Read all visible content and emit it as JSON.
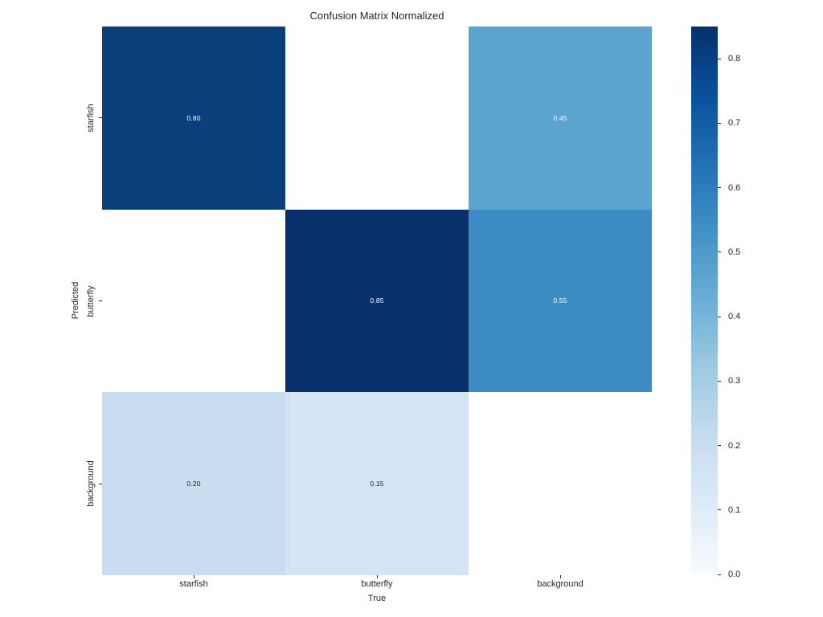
{
  "figure": {
    "background_color": "#ffffff",
    "text_color": "#262626"
  },
  "chart_data": {
    "type": "heatmap",
    "title": "Confusion Matrix Normalized",
    "xlabel": "True",
    "ylabel": "Predicted",
    "x_tick_labels": [
      "starfish",
      "butterfly",
      "background"
    ],
    "y_tick_labels": [
      "starfish",
      "butterfly",
      "background"
    ],
    "matrix": [
      [
        0.8,
        null,
        0.45
      ],
      [
        null,
        0.85,
        0.55
      ],
      [
        0.2,
        0.15,
        null
      ]
    ],
    "cells": [
      [
        {
          "label": "0.80",
          "bg": "#09407c",
          "fg": "#ffffff"
        },
        {
          "label": "",
          "bg": "#ffffff",
          "fg": "#1a1a1a"
        },
        {
          "label": "0.45",
          "bg": "#5ba4d0",
          "fg": "#ffffff"
        }
      ],
      [
        {
          "label": "",
          "bg": "#ffffff",
          "fg": "#1a1a1a"
        },
        {
          "label": "0.85",
          "bg": "#08306b",
          "fg": "#ffffff"
        },
        {
          "label": "0.55",
          "bg": "#3c8cc3",
          "fg": "#ffffff"
        }
      ],
      [
        {
          "label": "0.20",
          "bg": "#c9ddf0",
          "fg": "#1a1a1a"
        },
        {
          "label": "0.15",
          "bg": "#d4e4f4",
          "fg": "#1a1a1a"
        },
        {
          "label": "",
          "bg": "#ffffff",
          "fg": "#1a1a1a"
        }
      ]
    ],
    "colormap": "Blues",
    "grid": false,
    "legend_position": "right-colorbar",
    "colorbar": {
      "vmin": 0.0,
      "vmax": 0.85,
      "ticks": [
        {
          "label": "0.0",
          "value": 0.0
        },
        {
          "label": "0.1",
          "value": 0.1
        },
        {
          "label": "0.2",
          "value": 0.2
        },
        {
          "label": "0.3",
          "value": 0.3
        },
        {
          "label": "0.4",
          "value": 0.4
        },
        {
          "label": "0.5",
          "value": 0.5
        },
        {
          "label": "0.6",
          "value": 0.6
        },
        {
          "label": "0.7",
          "value": 0.7
        },
        {
          "label": "0.8",
          "value": 0.8
        }
      ],
      "gradient": [
        {
          "pos": 0.0,
          "color": "#f7fbff"
        },
        {
          "pos": 0.125,
          "color": "#deebf7"
        },
        {
          "pos": 0.25,
          "color": "#c6dbef"
        },
        {
          "pos": 0.375,
          "color": "#9ecae1"
        },
        {
          "pos": 0.5,
          "color": "#6baed6"
        },
        {
          "pos": 0.625,
          "color": "#4292c6"
        },
        {
          "pos": 0.75,
          "color": "#2171b5"
        },
        {
          "pos": 0.875,
          "color": "#08519c"
        },
        {
          "pos": 1.0,
          "color": "#08306b"
        }
      ]
    }
  }
}
